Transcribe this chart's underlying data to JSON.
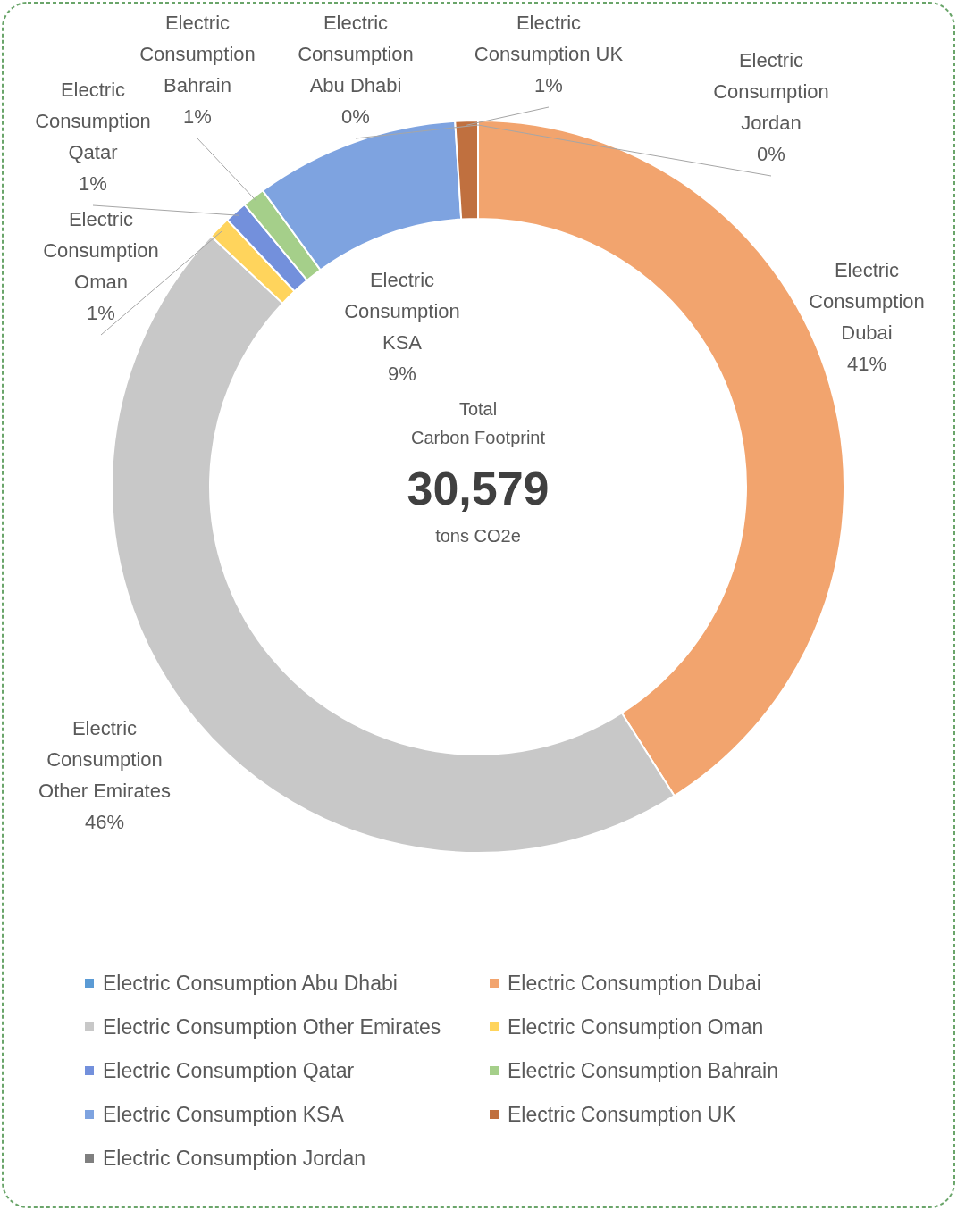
{
  "chart_data": {
    "type": "donut",
    "categories": [
      "Electric Consumption Abu Dhabi",
      "Electric Consumption Dubai",
      "Electric Consumption Other Emirates",
      "Electric Consumption Oman",
      "Electric Consumption Qatar",
      "Electric Consumption Bahrain",
      "Electric Consumption KSA",
      "Electric Consumption UK",
      "Electric Consumption Jordan"
    ],
    "values": [
      0,
      41,
      46,
      1,
      1,
      1,
      9,
      1,
      0
    ],
    "value_labels": [
      "0%",
      "41%",
      "46%",
      "1%",
      "1%",
      "1%",
      "9%",
      "1%",
      "0%"
    ],
    "colors": [
      "#5b9bd5",
      "#f2a46e",
      "#c8c8c8",
      "#ffd45c",
      "#7390dc",
      "#a5cf8a",
      "#7ea3e0",
      "#c0703f",
      "#7f7f7f"
    ],
    "annotations": [
      "Total",
      "Carbon Footprint",
      "30,579",
      "tons CO2e"
    ],
    "legend": "bottom"
  }
}
